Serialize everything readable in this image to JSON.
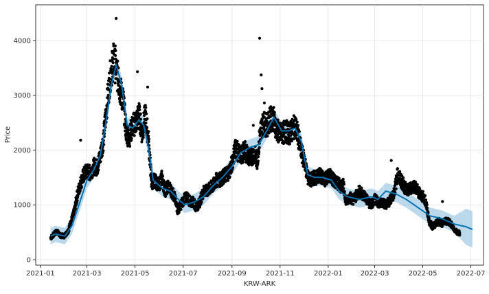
{
  "chart_data": {
    "type": "scatter",
    "title": "",
    "xlabel": "KRW-ARK",
    "ylabel": "Price",
    "grid": true,
    "xlim": [
      "2020-12-26",
      "2022-07-17"
    ],
    "ylim": [
      -100,
      4650
    ],
    "x_ticks": [
      "2021-01",
      "2021-03",
      "2021-05",
      "2021-07",
      "2021-09",
      "2021-11",
      "2022-01",
      "2022-03",
      "2022-05",
      "2022-07"
    ],
    "y_ticks": [
      0,
      1000,
      2000,
      3000,
      4000
    ],
    "colors": {
      "observed": "#000000",
      "forecast": "#0072B2",
      "interval": "#9fc9e3"
    },
    "observed_series": [
      [
        "2021-01-14",
        400
      ],
      [
        "2021-01-18",
        460
      ],
      [
        "2021-01-22",
        520
      ],
      [
        "2021-01-26",
        440
      ],
      [
        "2021-01-31",
        430
      ],
      [
        "2021-02-05",
        520
      ],
      [
        "2021-02-09",
        700
      ],
      [
        "2021-02-13",
        880
      ],
      [
        "2021-02-17",
        1200
      ],
      [
        "2021-02-21",
        1400
      ],
      [
        "2021-02-25",
        1550
      ],
      [
        "2021-03-01",
        1620
      ],
      [
        "2021-03-05",
        1580
      ],
      [
        "2021-03-10",
        1700
      ],
      [
        "2021-03-14",
        1680
      ],
      [
        "2021-03-18",
        1900
      ],
      [
        "2021-03-22",
        2200
      ],
      [
        "2021-03-26",
        2800
      ],
      [
        "2021-03-31",
        3400
      ],
      [
        "2021-04-04",
        3650
      ],
      [
        "2021-04-08",
        3400
      ],
      [
        "2021-04-12",
        3100
      ],
      [
        "2021-04-16",
        2900
      ],
      [
        "2021-04-20",
        2300
      ],
      [
        "2021-04-24",
        2250
      ],
      [
        "2021-04-28",
        2450
      ],
      [
        "2021-05-02",
        2500
      ],
      [
        "2021-05-06",
        2650
      ],
      [
        "2021-05-10",
        2300
      ],
      [
        "2021-05-14",
        2650
      ],
      [
        "2021-05-18",
        2200
      ],
      [
        "2021-05-22",
        1400
      ],
      [
        "2021-05-26",
        1450
      ],
      [
        "2021-05-31",
        1350
      ],
      [
        "2021-06-04",
        1500
      ],
      [
        "2021-06-08",
        1250
      ],
      [
        "2021-06-12",
        1350
      ],
      [
        "2021-06-16",
        1250
      ],
      [
        "2021-06-20",
        1150
      ],
      [
        "2021-06-24",
        900
      ],
      [
        "2021-06-28",
        1000
      ],
      [
        "2021-07-02",
        1100
      ],
      [
        "2021-07-06",
        1150
      ],
      [
        "2021-07-10",
        1050
      ],
      [
        "2021-07-14",
        1050
      ],
      [
        "2021-07-18",
        950
      ],
      [
        "2021-07-22",
        1050
      ],
      [
        "2021-07-27",
        1250
      ],
      [
        "2021-07-31",
        1250
      ],
      [
        "2021-08-04",
        1300
      ],
      [
        "2021-08-08",
        1350
      ],
      [
        "2021-08-12",
        1450
      ],
      [
        "2021-08-16",
        1450
      ],
      [
        "2021-08-20",
        1500
      ],
      [
        "2021-08-24",
        1550
      ],
      [
        "2021-08-28",
        1600
      ],
      [
        "2021-09-01",
        1750
      ],
      [
        "2021-09-05",
        2050
      ],
      [
        "2021-09-09",
        1950
      ],
      [
        "2021-09-13",
        1900
      ],
      [
        "2021-09-17",
        2000
      ],
      [
        "2021-09-21",
        1900
      ],
      [
        "2021-09-25",
        1850
      ],
      [
        "2021-09-29",
        1950
      ],
      [
        "2021-10-03",
        1800
      ],
      [
        "2021-10-07",
        2350
      ],
      [
        "2021-10-11",
        2500
      ],
      [
        "2021-10-15",
        2450
      ],
      [
        "2021-10-19",
        2550
      ],
      [
        "2021-10-23",
        2600
      ],
      [
        "2021-10-27",
        2400
      ],
      [
        "2021-10-31",
        2300
      ],
      [
        "2021-11-04",
        2300
      ],
      [
        "2021-11-08",
        2350
      ],
      [
        "2021-11-12",
        2300
      ],
      [
        "2021-11-16",
        2350
      ],
      [
        "2021-11-20",
        2450
      ],
      [
        "2021-11-24",
        2250
      ],
      [
        "2021-11-28",
        1950
      ],
      [
        "2021-12-02",
        1800
      ],
      [
        "2021-12-06",
        1500
      ],
      [
        "2021-12-10",
        1450
      ],
      [
        "2021-12-14",
        1500
      ],
      [
        "2021-12-18",
        1500
      ],
      [
        "2021-12-22",
        1550
      ],
      [
        "2021-12-26",
        1450
      ],
      [
        "2021-12-31",
        1500
      ],
      [
        "2022-01-04",
        1550
      ],
      [
        "2022-01-08",
        1450
      ],
      [
        "2022-01-12",
        1400
      ],
      [
        "2022-01-16",
        1350
      ],
      [
        "2022-01-20",
        1350
      ],
      [
        "2022-01-24",
        1050
      ],
      [
        "2022-01-28",
        1150
      ],
      [
        "2022-02-01",
        1100
      ],
      [
        "2022-02-05",
        1150
      ],
      [
        "2022-02-09",
        1250
      ],
      [
        "2022-02-13",
        1200
      ],
      [
        "2022-02-17",
        1150
      ],
      [
        "2022-02-21",
        1050
      ],
      [
        "2022-02-25",
        1000
      ],
      [
        "2022-03-01",
        1100
      ],
      [
        "2022-03-05",
        1050
      ],
      [
        "2022-03-10",
        1050
      ],
      [
        "2022-03-14",
        1000
      ],
      [
        "2022-03-18",
        1050
      ],
      [
        "2022-03-22",
        1100
      ],
      [
        "2022-03-26",
        1250
      ],
      [
        "2022-03-30",
        1550
      ],
      [
        "2022-04-03",
        1450
      ],
      [
        "2022-04-07",
        1350
      ],
      [
        "2022-04-11",
        1250
      ],
      [
        "2022-04-15",
        1300
      ],
      [
        "2022-04-19",
        1350
      ],
      [
        "2022-04-23",
        1300
      ],
      [
        "2022-04-27",
        1200
      ],
      [
        "2022-05-01",
        1150
      ],
      [
        "2022-05-05",
        1050
      ],
      [
        "2022-05-09",
        700
      ],
      [
        "2022-05-13",
        600
      ],
      [
        "2022-05-17",
        650
      ],
      [
        "2022-05-21",
        700
      ],
      [
        "2022-05-25",
        650
      ],
      [
        "2022-05-29",
        700
      ],
      [
        "2022-06-02",
        700
      ],
      [
        "2022-06-06",
        650
      ],
      [
        "2022-06-10",
        550
      ],
      [
        "2022-06-14",
        500
      ],
      [
        "2022-06-17",
        480
      ]
    ],
    "observed_spikes": [
      [
        "2021-02-21",
        2180
      ],
      [
        "2021-04-07",
        4400
      ],
      [
        "2021-04-06",
        3900
      ],
      [
        "2021-04-10",
        3500
      ],
      [
        "2021-05-04",
        3430
      ],
      [
        "2021-05-17",
        3150
      ],
      [
        "2021-10-06",
        4040
      ],
      [
        "2021-10-08",
        3370
      ],
      [
        "2021-10-09",
        3120
      ],
      [
        "2021-10-12",
        2860
      ],
      [
        "2021-09-28",
        2450
      ],
      [
        "2022-03-22",
        1810
      ],
      [
        "2022-05-26",
        1060
      ]
    ],
    "forecast_series": [
      [
        "2021-01-14",
        430
      ],
      [
        "2021-01-20",
        470
      ],
      [
        "2021-02-01",
        430
      ],
      [
        "2021-02-10",
        620
      ],
      [
        "2021-02-20",
        1050
      ],
      [
        "2021-03-01",
        1450
      ],
      [
        "2021-03-10",
        1650
      ],
      [
        "2021-03-18",
        1900
      ],
      [
        "2021-03-25",
        2500
      ],
      [
        "2021-04-01",
        3200
      ],
      [
        "2021-04-07",
        3550
      ],
      [
        "2021-04-14",
        3200
      ],
      [
        "2021-04-21",
        2450
      ],
      [
        "2021-04-28",
        2400
      ],
      [
        "2021-05-06",
        2550
      ],
      [
        "2021-05-12",
        2450
      ],
      [
        "2021-05-18",
        2050
      ],
      [
        "2021-05-24",
        1450
      ],
      [
        "2021-06-05",
        1300
      ],
      [
        "2021-06-15",
        1250
      ],
      [
        "2021-06-25",
        1100
      ],
      [
        "2021-07-03",
        1000
      ],
      [
        "2021-07-15",
        1050
      ],
      [
        "2021-07-27",
        1150
      ],
      [
        "2021-08-08",
        1350
      ],
      [
        "2021-08-20",
        1500
      ],
      [
        "2021-09-01",
        1700
      ],
      [
        "2021-09-12",
        1950
      ],
      [
        "2021-09-24",
        2050
      ],
      [
        "2021-10-05",
        2100
      ],
      [
        "2021-10-15",
        2350
      ],
      [
        "2021-10-24",
        2600
      ],
      [
        "2021-11-03",
        2350
      ],
      [
        "2021-11-12",
        2350
      ],
      [
        "2021-11-20",
        2400
      ],
      [
        "2021-11-28",
        2150
      ],
      [
        "2021-12-06",
        1550
      ],
      [
        "2021-12-15",
        1500
      ],
      [
        "2021-12-25",
        1500
      ],
      [
        "2022-01-05",
        1450
      ],
      [
        "2022-01-15",
        1250
      ],
      [
        "2022-01-25",
        1150
      ],
      [
        "2022-02-10",
        1100
      ],
      [
        "2022-02-25",
        1150
      ],
      [
        "2022-03-05",
        1100
      ],
      [
        "2022-03-15",
        1250
      ],
      [
        "2022-03-28",
        1200
      ],
      [
        "2022-04-10",
        1100
      ],
      [
        "2022-04-25",
        950
      ],
      [
        "2022-05-10",
        800
      ],
      [
        "2022-05-25",
        750
      ],
      [
        "2022-06-10",
        650
      ],
      [
        "2022-06-25",
        600
      ],
      [
        "2022-07-03",
        550
      ]
    ],
    "interval_width": 150,
    "interval_width_future": 330
  }
}
